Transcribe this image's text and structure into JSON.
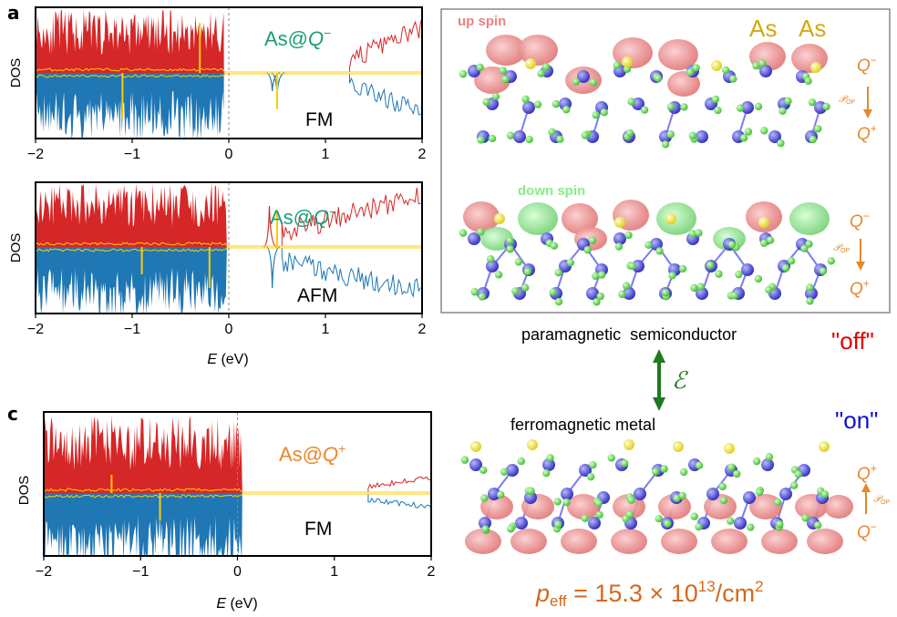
{
  "panels": {
    "a_label": "a",
    "c_label": "c",
    "top": {
      "species_prefix": "As@",
      "species_var": "Q",
      "species_charge": "−",
      "order": "FM"
    },
    "middle": {
      "species_prefix": "As@",
      "species_var": "Q",
      "species_charge": "−",
      "order": "AFM"
    },
    "bottom": {
      "species_prefix": "As@",
      "species_var": "Q",
      "species_charge": "+",
      "order": "FM"
    }
  },
  "axes": {
    "ylabel": "DOS",
    "xlabel_var": "E",
    "xlabel_unit": "(eV)",
    "xticks": [
      "−2",
      "−1",
      "0",
      "1",
      "2"
    ]
  },
  "chart_data": [
    {
      "type": "area",
      "title": "",
      "xlabel": "E (eV)",
      "ylabel": "DOS",
      "xlim": [
        -2,
        2
      ],
      "fermi_level": 0,
      "series": [
        {
          "name": "",
          "color": "#d62728",
          "note": ""
        },
        {
          "name": "",
          "color": "#1f77b4"
        },
        {
          "name": "",
          "color": "#ffcc00"
        }
      ]
    },
    {
      "type": "area",
      "title": "",
      "xlabel": "E (eV)",
      "ylabel": "DOS",
      "xlim": [
        -2,
        2
      ],
      "fermi_level": 0
    },
    {
      "type": "area",
      "title": "",
      "xlabel": "E (eV)",
      "ylabel": "DOS",
      "xlim": [
        -2,
        2
      ],
      "fermi_level": 0
    }
  ],
  "structures": {
    "up_spin": "up spin",
    "down_spin": "down spin",
    "as_labels": [
      "As",
      "As"
    ],
    "q_minus": "Q",
    "q_plus": "Q",
    "minus": "−",
    "plus": "+",
    "pop": "𝒫",
    "pop_sub": "OP",
    "paramagnetic": "paramagnetic  semiconductor",
    "off": "\"off\"",
    "field": "ℰ",
    "ferromagnetic": "ferromagnetic metal",
    "on": "\"on\"",
    "peff_var": "p",
    "peff_sub": "eff",
    "peff_value": " = 15.3 × 10",
    "peff_exp": "13",
    "peff_unit": "/cm",
    "peff_exp2": "2"
  },
  "colors": {
    "up": "#d62728",
    "down": "#1f77b4",
    "as_pdos": "#ffcc00",
    "teal": "#1a9e77",
    "orange": "#e8862a",
    "red": "#e00000",
    "blue": "#1010d0",
    "green_arrow": "#1e7a1e",
    "atom_blue": "#4a4ad8",
    "atom_green": "#66dd55",
    "atom_yellow": "#f0f040",
    "lobe_pink": "#f0a0a0",
    "lobe_green": "#a0f0a0"
  }
}
